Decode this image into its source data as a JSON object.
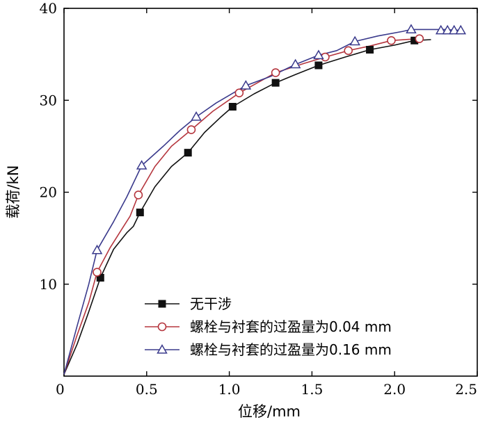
{
  "chart_data": {
    "type": "line",
    "title": "",
    "xlabel": "位移/mm",
    "ylabel": "载荷/kN",
    "xlim": [
      0,
      2.5
    ],
    "ylim": [
      0,
      40
    ],
    "xticks": [
      0,
      0.5,
      1.0,
      1.5,
      2.0,
      2.5
    ],
    "xtick_labels": [
      "0",
      "0.5",
      "1.0",
      "1.5",
      "2.0",
      "2.5"
    ],
    "yticks": [
      10,
      20,
      30,
      40
    ],
    "ytick_labels": [
      "10",
      "20",
      "30",
      "40"
    ],
    "grid": false,
    "legend_position": "bottom-right",
    "series": [
      {
        "name": "无干涉",
        "color": "#111111",
        "marker": "filled-square",
        "line": [
          [
            0.0,
            0.2
          ],
          [
            0.08,
            3.5
          ],
          [
            0.15,
            7.0
          ],
          [
            0.22,
            10.7
          ],
          [
            0.3,
            13.8
          ],
          [
            0.38,
            15.6
          ],
          [
            0.42,
            16.3
          ],
          [
            0.46,
            17.8
          ],
          [
            0.55,
            20.6
          ],
          [
            0.65,
            22.8
          ],
          [
            0.75,
            24.3
          ],
          [
            0.85,
            26.5
          ],
          [
            0.95,
            28.2
          ],
          [
            1.02,
            29.3
          ],
          [
            1.15,
            30.7
          ],
          [
            1.28,
            31.9
          ],
          [
            1.4,
            32.8
          ],
          [
            1.54,
            33.8
          ],
          [
            1.7,
            34.7
          ],
          [
            1.85,
            35.5
          ],
          [
            2.0,
            36.0
          ],
          [
            2.12,
            36.5
          ],
          [
            2.22,
            36.6
          ]
        ],
        "markers": [
          [
            0.22,
            10.7
          ],
          [
            0.46,
            17.8
          ],
          [
            0.75,
            24.3
          ],
          [
            1.02,
            29.3
          ],
          [
            1.28,
            31.9
          ],
          [
            1.54,
            33.8
          ],
          [
            1.85,
            35.5
          ],
          [
            2.12,
            36.5
          ]
        ]
      },
      {
        "name": "螺栓与衬套的过盈量为0.04 mm",
        "color": "#b5363e",
        "marker": "open-circle",
        "line": [
          [
            0.0,
            0.2
          ],
          [
            0.08,
            4.5
          ],
          [
            0.15,
            8.0
          ],
          [
            0.2,
            11.3
          ],
          [
            0.28,
            14.0
          ],
          [
            0.35,
            16.0
          ],
          [
            0.4,
            17.4
          ],
          [
            0.45,
            19.7
          ],
          [
            0.55,
            22.8
          ],
          [
            0.65,
            25.0
          ],
          [
            0.77,
            26.8
          ],
          [
            0.9,
            28.8
          ],
          [
            1.06,
            30.8
          ],
          [
            1.2,
            32.2
          ],
          [
            1.28,
            33.0
          ],
          [
            1.45,
            34.0
          ],
          [
            1.58,
            34.7
          ],
          [
            1.72,
            35.4
          ],
          [
            1.85,
            35.9
          ],
          [
            1.98,
            36.5
          ],
          [
            2.15,
            36.7
          ]
        ],
        "markers": [
          [
            0.2,
            11.3
          ],
          [
            0.45,
            19.7
          ],
          [
            0.77,
            26.8
          ],
          [
            1.06,
            30.8
          ],
          [
            1.28,
            33.0
          ],
          [
            1.58,
            34.7
          ],
          [
            1.72,
            35.4
          ],
          [
            1.98,
            36.5
          ],
          [
            2.15,
            36.7
          ]
        ]
      },
      {
        "name": "螺栓与衬套的过盈量为0.16 mm",
        "color": "#3a3a8c",
        "marker": "open-triangle",
        "line": [
          [
            0.0,
            0.2
          ],
          [
            0.08,
            5.5
          ],
          [
            0.15,
            10.0
          ],
          [
            0.2,
            13.7
          ],
          [
            0.3,
            16.8
          ],
          [
            0.38,
            19.5
          ],
          [
            0.47,
            22.9
          ],
          [
            0.6,
            25.0
          ],
          [
            0.7,
            26.7
          ],
          [
            0.8,
            28.2
          ],
          [
            0.92,
            29.7
          ],
          [
            1.1,
            31.6
          ],
          [
            1.25,
            32.6
          ],
          [
            1.4,
            33.9
          ],
          [
            1.54,
            34.9
          ],
          [
            1.65,
            35.4
          ],
          [
            1.76,
            36.4
          ],
          [
            1.9,
            37.0
          ],
          [
            2.05,
            37.5
          ],
          [
            2.1,
            37.7
          ],
          [
            2.3,
            37.7
          ],
          [
            2.4,
            37.6
          ]
        ],
        "markers": [
          [
            0.2,
            13.7
          ],
          [
            0.47,
            22.9
          ],
          [
            0.8,
            28.2
          ],
          [
            1.1,
            31.6
          ],
          [
            1.4,
            33.9
          ],
          [
            1.54,
            34.9
          ],
          [
            1.76,
            36.4
          ],
          [
            2.1,
            37.7
          ],
          [
            2.28,
            37.6
          ],
          [
            2.32,
            37.6
          ],
          [
            2.36,
            37.6
          ],
          [
            2.4,
            37.6
          ]
        ]
      }
    ]
  }
}
